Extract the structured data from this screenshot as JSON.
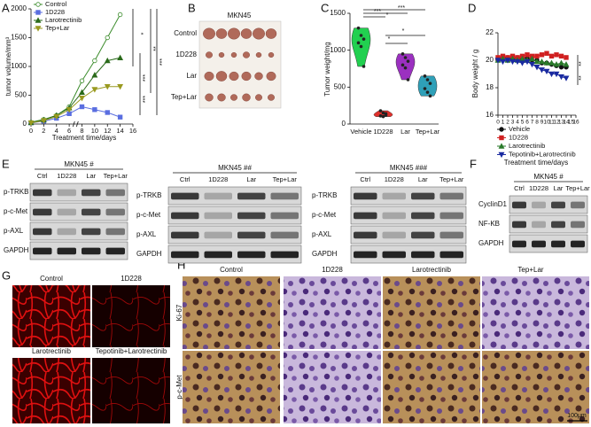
{
  "figure": {
    "panel_labels": [
      "A",
      "B",
      "C",
      "D",
      "E",
      "F",
      "G",
      "H"
    ],
    "B": {
      "title": "MKN45",
      "rows": [
        "Control",
        "1D228",
        "Lar",
        "Tep+Lar"
      ]
    },
    "E": {
      "blots": [
        {
          "title": "MKN45 #",
          "columns": [
            "Ctrl",
            "1D228",
            "Lar",
            "Tep+Lar"
          ],
          "rows": [
            "p-TRKB",
            "p-c-Met",
            "p-AXL",
            "GAPDH"
          ]
        },
        {
          "title": "MKN45 ##",
          "columns": [
            "Ctrl",
            "1D228",
            "Lar",
            "Tep+Lar"
          ],
          "rows": [
            "p-TRKB",
            "p-c-Met",
            "p-AXL",
            "GAPDH"
          ]
        },
        {
          "title": "MKN45 ###",
          "columns": [
            "Ctrl",
            "1D228",
            "Lar",
            "Tep+Lar"
          ],
          "rows": [
            "p-TRKB",
            "p-c-Met",
            "p-AXL",
            "GAPDH"
          ]
        }
      ]
    },
    "F": {
      "title": "MKN45 #",
      "columns": [
        "Ctrl",
        "1D228",
        "Lar",
        "Tep+Lar"
      ],
      "rows": [
        "CyclinD1",
        "NF-KB",
        "GAPDH"
      ]
    },
    "G": {
      "labels": [
        "Control",
        "1D228",
        "Larotrectinib",
        "Tepotinib+Larotrectinib"
      ]
    },
    "H": {
      "columns": [
        "Control",
        "1D228",
        "Larotrectinib",
        "Tep+Lar"
      ],
      "rows": [
        "Ki-67",
        "p-c-Met"
      ],
      "scale_bar": "100μm"
    }
  },
  "chart_data": [
    {
      "type": "line",
      "x_label": "Treatment time/days",
      "y_label": "tumor volume/mm³",
      "x": [
        0,
        2,
        4,
        6,
        8,
        10,
        12,
        14
      ],
      "series": [
        {
          "name": "Control",
          "color": "#3c8c2c",
          "values": [
            30,
            80,
            150,
            300,
            750,
            1100,
            1500,
            1900
          ]
        },
        {
          "name": "1D228",
          "color": "#5a6ee0",
          "values": [
            20,
            50,
            100,
            180,
            300,
            250,
            200,
            120
          ]
        },
        {
          "name": "Larotrectinib",
          "color": "#2a6a1a",
          "values": [
            25,
            70,
            150,
            280,
            550,
            850,
            1100,
            1150
          ]
        },
        {
          "name": "Tep+Lar",
          "color": "#9a9a20",
          "values": [
            20,
            60,
            130,
            250,
            450,
            600,
            650,
            650
          ]
        }
      ],
      "xlim": [
        0,
        16
      ],
      "xticks": [
        0,
        2,
        4,
        6,
        8,
        10,
        12,
        14,
        16
      ],
      "ylim": [
        0,
        2000
      ],
      "yticks": [
        0,
        500,
        1000,
        1500,
        2000
      ],
      "annotations": [
        "*",
        "**",
        "***",
        "***",
        "***"
      ],
      "legend": "upper left"
    },
    {
      "type": "violin",
      "y_label": "Tumor weight/mg",
      "categories": [
        "Vehicle",
        "1D228",
        "Lar",
        "Tep+Lar"
      ],
      "colors": [
        "#22d050",
        "#e0302c",
        "#9b30c0",
        "#2fa0b8"
      ],
      "values": [
        [
          1300,
          1200,
          1150,
          1100,
          1050,
          780
        ],
        [
          180,
          150,
          120,
          110,
          100,
          140
        ],
        [
          950,
          900,
          850,
          800,
          760,
          600
        ],
        [
          650,
          600,
          550,
          480,
          430,
          380
        ]
      ],
      "ylim": [
        0,
        1500
      ],
      "yticks": [
        0,
        500,
        1000,
        1500
      ],
      "annotations": [
        "***",
        "*",
        "***",
        "*",
        "*"
      ]
    },
    {
      "type": "line",
      "x_label": "Treatment time/days",
      "y_label": "Body weight / g",
      "x": [
        0,
        1,
        2,
        3,
        4,
        5,
        6,
        7,
        8,
        9,
        10,
        11,
        12,
        13,
        14
      ],
      "series": [
        {
          "name": "Vehicle",
          "color": "#111111",
          "values": [
            20.1,
            20.2,
            20.2,
            20.1,
            20.2,
            20.1,
            20.2,
            20.0,
            20.0,
            19.8,
            19.8,
            19.7,
            19.6,
            19.5,
            19.5
          ]
        },
        {
          "name": "1D228",
          "color": "#d02020",
          "values": [
            20.2,
            20.3,
            20.2,
            20.3,
            20.2,
            20.3,
            20.4,
            20.3,
            20.3,
            20.4,
            20.5,
            20.3,
            20.4,
            20.3,
            20.2
          ]
        },
        {
          "name": "Larotrectinib",
          "color": "#2a7a2a",
          "values": [
            20.0,
            20.1,
            20.0,
            20.1,
            20.0,
            20.1,
            20.0,
            20.1,
            19.9,
            19.9,
            19.8,
            19.8,
            19.7,
            19.8,
            19.7
          ]
        },
        {
          "name": "Tepotinib+Larotrectinib",
          "color": "#1a2aa0",
          "values": [
            20.0,
            19.9,
            20.0,
            19.9,
            19.9,
            19.8,
            19.9,
            19.7,
            19.5,
            19.3,
            19.2,
            19.0,
            19.0,
            18.8,
            18.7
          ]
        }
      ],
      "xlim": [
        0,
        16
      ],
      "xticks": [
        0,
        1,
        2,
        3,
        4,
        5,
        6,
        7,
        8,
        9,
        10,
        11,
        12,
        13,
        14,
        15,
        16
      ],
      "ylim": [
        16,
        22
      ],
      "yticks": [
        16,
        18,
        20,
        22
      ],
      "annotations": [
        "**",
        "**"
      ],
      "legend": "bottom"
    }
  ]
}
